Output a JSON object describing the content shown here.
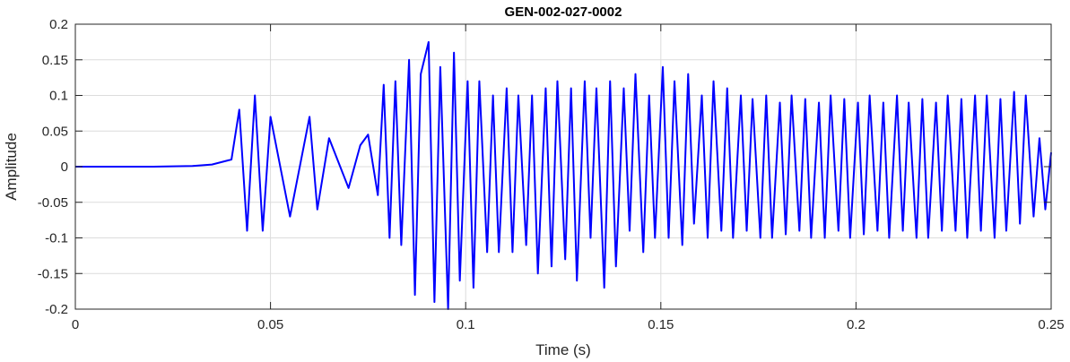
{
  "chart_data": {
    "type": "line",
    "title": "GEN-002-027-0002",
    "xlabel": "Time (s)",
    "ylabel": "Amplitude",
    "xlim": [
      0,
      0.25
    ],
    "ylim": [
      -0.2,
      0.2
    ],
    "xticks": [
      0,
      0.05,
      0.1,
      0.15,
      0.2,
      0.25
    ],
    "xtick_labels": [
      "0",
      "0.05",
      "0.1",
      "0.15",
      "0.2",
      "0.25"
    ],
    "yticks": [
      -0.2,
      -0.15,
      -0.1,
      -0.05,
      0,
      0.05,
      0.1,
      0.15,
      0.2
    ],
    "ytick_labels": [
      "-0.2",
      "-0.15",
      "-0.1",
      "-0.05",
      "0",
      "0.05",
      "0.1",
      "0.15",
      "0.2"
    ],
    "grid": true,
    "series": [
      {
        "color": "#0000ff",
        "x": [
          0.0,
          0.02,
          0.03,
          0.035,
          0.04,
          0.042,
          0.044,
          0.046,
          0.048,
          0.05,
          0.055,
          0.06,
          0.062,
          0.065,
          0.07,
          0.073,
          0.075,
          0.0775,
          0.079,
          0.0805,
          0.082,
          0.0835,
          0.0855,
          0.087,
          0.0885,
          0.0905,
          0.092,
          0.0935,
          0.0955,
          0.097,
          0.0985,
          0.1005,
          0.102,
          0.1035,
          0.1055,
          0.107,
          0.1085,
          0.1105,
          0.112,
          0.1135,
          0.1155,
          0.117,
          0.1185,
          0.1205,
          0.122,
          0.1235,
          0.1255,
          0.127,
          0.1285,
          0.1305,
          0.132,
          0.1335,
          0.1355,
          0.137,
          0.1385,
          0.1405,
          0.142,
          0.1435,
          0.1455,
          0.147,
          0.1485,
          0.1505,
          0.152,
          0.1535,
          0.1555,
          0.157,
          0.1585,
          0.1605,
          0.162,
          0.1635,
          0.1655,
          0.167,
          0.1685,
          0.1705,
          0.172,
          0.1735,
          0.1755,
          0.177,
          0.1785,
          0.1805,
          0.182,
          0.1835,
          0.1855,
          0.187,
          0.1885,
          0.1905,
          0.192,
          0.1935,
          0.1955,
          0.197,
          0.1985,
          0.2005,
          0.202,
          0.2035,
          0.2055,
          0.207,
          0.2085,
          0.2105,
          0.212,
          0.2135,
          0.2155,
          0.217,
          0.2185,
          0.2205,
          0.222,
          0.2235,
          0.2255,
          0.227,
          0.2285,
          0.2305,
          0.232,
          0.2335,
          0.2355,
          0.237,
          0.2385,
          0.2405,
          0.242,
          0.2435,
          0.2455,
          0.247,
          0.2485,
          0.25
        ],
        "y": [
          0.0,
          0.0,
          0.001,
          0.003,
          0.01,
          0.08,
          -0.09,
          0.1,
          -0.09,
          0.07,
          -0.07,
          0.07,
          -0.06,
          0.04,
          -0.03,
          0.03,
          0.045,
          -0.04,
          0.115,
          -0.1,
          0.12,
          -0.11,
          0.15,
          -0.18,
          0.13,
          0.175,
          -0.19,
          0.14,
          -0.2,
          0.16,
          -0.16,
          0.12,
          -0.17,
          0.12,
          -0.12,
          0.1,
          -0.12,
          0.11,
          -0.12,
          0.1,
          -0.11,
          0.1,
          -0.15,
          0.11,
          -0.14,
          0.12,
          -0.13,
          0.11,
          -0.16,
          0.12,
          -0.1,
          0.11,
          -0.17,
          0.12,
          -0.14,
          0.11,
          -0.09,
          0.13,
          -0.12,
          0.1,
          -0.1,
          0.14,
          -0.1,
          0.12,
          -0.11,
          0.13,
          -0.08,
          0.1,
          -0.1,
          0.12,
          -0.09,
          0.11,
          -0.1,
          0.1,
          -0.09,
          0.095,
          -0.1,
          0.1,
          -0.1,
          0.09,
          -0.095,
          0.1,
          -0.09,
          0.095,
          -0.1,
          0.09,
          -0.1,
          0.1,
          -0.09,
          0.095,
          -0.1,
          0.09,
          -0.095,
          0.1,
          -0.09,
          0.09,
          -0.1,
          0.1,
          -0.09,
          0.09,
          -0.1,
          0.095,
          -0.1,
          0.09,
          -0.09,
          0.1,
          -0.09,
          0.095,
          -0.1,
          0.1,
          -0.09,
          0.1,
          -0.1,
          0.095,
          -0.09,
          0.105,
          -0.08,
          0.1,
          -0.07,
          0.04,
          -0.06,
          0.02
        ]
      }
    ]
  }
}
